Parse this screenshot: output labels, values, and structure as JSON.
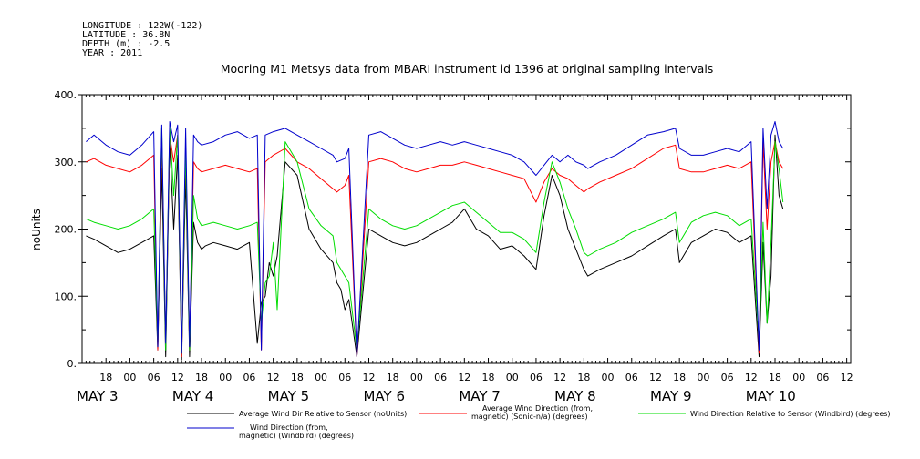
{
  "metadata": {
    "longitude": "LONGITUDE : 122W(-122)",
    "latitude": "LATITUDE : 36.8N",
    "depth": "DEPTH (m) : -2.5",
    "year": "YEAR : 2011"
  },
  "chart_data": {
    "type": "line",
    "title": "Mooring M1 Metsys data from MBARI instrument id 1396 at original sampling intervals",
    "ylabel": "noUnits",
    "xlabel": "",
    "ylim": [
      0,
      400
    ],
    "xlim": [
      12,
      205
    ],
    "x_units": "hours since MAY 3 00:00 (2011)",
    "yticks": [
      0,
      100,
      200,
      300,
      400
    ],
    "ytick_labels": [
      "0.",
      "100.",
      "200.",
      "300.",
      "400."
    ],
    "xticks": [
      {
        "x": 18,
        "label": "18"
      },
      {
        "x": 24,
        "label": "00"
      },
      {
        "x": 30,
        "label": "06"
      },
      {
        "x": 36,
        "label": "12"
      },
      {
        "x": 42,
        "label": "18"
      },
      {
        "x": 48,
        "label": "00"
      },
      {
        "x": 54,
        "label": "06"
      },
      {
        "x": 60,
        "label": "12"
      },
      {
        "x": 66,
        "label": "18"
      },
      {
        "x": 72,
        "label": "00"
      },
      {
        "x": 78,
        "label": "06"
      },
      {
        "x": 84,
        "label": "12"
      },
      {
        "x": 90,
        "label": "18"
      },
      {
        "x": 96,
        "label": "00"
      },
      {
        "x": 102,
        "label": "06"
      },
      {
        "x": 108,
        "label": "12"
      },
      {
        "x": 114,
        "label": "18"
      },
      {
        "x": 120,
        "label": "00"
      },
      {
        "x": 126,
        "label": "06"
      },
      {
        "x": 132,
        "label": "12"
      },
      {
        "x": 138,
        "label": "18"
      },
      {
        "x": 144,
        "label": "00"
      },
      {
        "x": 150,
        "label": "06"
      },
      {
        "x": 156,
        "label": "12"
      },
      {
        "x": 162,
        "label": "18"
      },
      {
        "x": 168,
        "label": "00"
      },
      {
        "x": 174,
        "label": "06"
      },
      {
        "x": 180,
        "label": "12"
      },
      {
        "x": 186,
        "label": "18"
      },
      {
        "x": 192,
        "label": "00"
      },
      {
        "x": 198,
        "label": "06"
      },
      {
        "x": 204,
        "label": "12"
      }
    ],
    "day_labels": [
      {
        "x": 12,
        "label": "MAY  3"
      },
      {
        "x": 36,
        "label": "MAY  4"
      },
      {
        "x": 60,
        "label": "MAY  5"
      },
      {
        "x": 84,
        "label": "MAY  6"
      },
      {
        "x": 108,
        "label": "MAY  7"
      },
      {
        "x": 132,
        "label": "MAY  8"
      },
      {
        "x": 156,
        "label": "MAY  9"
      },
      {
        "x": 180,
        "label": "MAY  10"
      }
    ],
    "series": [
      {
        "name": "Average Wind Dir Relative to Sensor (noUnits)",
        "color": "#000000",
        "x": [
          13,
          15,
          18,
          21,
          24,
          27,
          30,
          31,
          32,
          33,
          34,
          35,
          36,
          37,
          38,
          39,
          40,
          41,
          42,
          43,
          45,
          48,
          51,
          54,
          56,
          57,
          58,
          59,
          60,
          61,
          63,
          66,
          69,
          72,
          75,
          76,
          77,
          78,
          79,
          81,
          84,
          87,
          90,
          93,
          96,
          99,
          102,
          105,
          108,
          111,
          114,
          117,
          120,
          123,
          126,
          128,
          130,
          132,
          134,
          136,
          138,
          139,
          142,
          146,
          150,
          154,
          158,
          161,
          162,
          165,
          168,
          171,
          174,
          177,
          180,
          182,
          183,
          184,
          185,
          186,
          187,
          188
        ],
        "y": [
          190,
          185,
          175,
          165,
          170,
          180,
          190,
          20,
          290,
          10,
          330,
          200,
          310,
          5,
          280,
          10,
          210,
          180,
          170,
          175,
          180,
          175,
          170,
          180,
          30,
          90,
          100,
          150,
          130,
          160,
          300,
          280,
          200,
          170,
          150,
          120,
          110,
          80,
          95,
          10,
          200,
          190,
          180,
          175,
          180,
          190,
          200,
          210,
          230,
          200,
          190,
          170,
          175,
          160,
          140,
          220,
          280,
          250,
          200,
          170,
          140,
          130,
          140,
          150,
          160,
          175,
          190,
          200,
          150,
          180,
          190,
          200,
          195,
          180,
          190,
          10,
          180,
          60,
          130,
          340,
          250,
          230
        ]
      },
      {
        "name": "Average Wind Direction (from, magnetic) (Sonic-n/a) (degrees)",
        "color": "#ff0000",
        "x": [
          13,
          15,
          18,
          21,
          24,
          27,
          30,
          31,
          32,
          33,
          34,
          35,
          36,
          37,
          38,
          39,
          40,
          41,
          42,
          45,
          48,
          51,
          54,
          56,
          57,
          58,
          60,
          63,
          66,
          69,
          72,
          75,
          76,
          78,
          79,
          81,
          84,
          87,
          90,
          93,
          96,
          99,
          102,
          105,
          108,
          111,
          114,
          117,
          120,
          123,
          126,
          128,
          130,
          132,
          134,
          136,
          138,
          139,
          142,
          146,
          150,
          154,
          158,
          161,
          162,
          165,
          168,
          171,
          174,
          177,
          180,
          182,
          183,
          184,
          185,
          186,
          187,
          188
        ],
        "y": [
          300,
          305,
          295,
          290,
          285,
          295,
          310,
          20,
          330,
          30,
          340,
          300,
          340,
          10,
          320,
          20,
          300,
          290,
          285,
          290,
          295,
          290,
          285,
          290,
          20,
          300,
          310,
          320,
          300,
          290,
          275,
          260,
          255,
          265,
          280,
          10,
          300,
          305,
          300,
          290,
          285,
          290,
          295,
          295,
          300,
          295,
          290,
          285,
          280,
          275,
          240,
          270,
          290,
          280,
          275,
          265,
          255,
          260,
          270,
          280,
          290,
          305,
          320,
          325,
          290,
          285,
          285,
          290,
          295,
          290,
          300,
          15,
          330,
          200,
          300,
          330,
          300,
          290
        ]
      },
      {
        "name": "Wind Direction Relative to Sensor (Windbird) (degrees)",
        "color": "#00dd00",
        "x": [
          13,
          15,
          18,
          21,
          24,
          27,
          30,
          31,
          32,
          33,
          34,
          35,
          36,
          37,
          38,
          39,
          40,
          41,
          42,
          45,
          48,
          51,
          54,
          56,
          57,
          58,
          59,
          60,
          61,
          63,
          66,
          69,
          72,
          75,
          76,
          78,
          79,
          81,
          84,
          87,
          90,
          93,
          96,
          99,
          102,
          105,
          108,
          111,
          114,
          117,
          120,
          123,
          126,
          128,
          130,
          132,
          134,
          136,
          138,
          139,
          142,
          146,
          150,
          154,
          158,
          161,
          162,
          165,
          168,
          171,
          174,
          177,
          180,
          182,
          183,
          184,
          185,
          186,
          187,
          188
        ],
        "y": [
          215,
          210,
          205,
          200,
          205,
          215,
          230,
          30,
          350,
          20,
          355,
          250,
          340,
          15,
          320,
          20,
          250,
          215,
          205,
          210,
          205,
          200,
          205,
          210,
          60,
          120,
          130,
          180,
          80,
          330,
          300,
          230,
          205,
          190,
          150,
          130,
          120,
          20,
          230,
          215,
          205,
          200,
          205,
          215,
          225,
          235,
          240,
          225,
          210,
          195,
          195,
          185,
          165,
          240,
          300,
          270,
          230,
          200,
          165,
          160,
          170,
          180,
          195,
          205,
          215,
          225,
          180,
          210,
          220,
          225,
          220,
          205,
          215,
          30,
          210,
          60,
          180,
          330,
          290,
          240
        ]
      },
      {
        "name": "Wind Direction (from, magnetic) (Windbird) (degrees)",
        "color": "#0000cc",
        "x": [
          13,
          15,
          18,
          21,
          24,
          27,
          30,
          31,
          32,
          33,
          34,
          35,
          36,
          37,
          38,
          39,
          40,
          41,
          42,
          45,
          48,
          51,
          54,
          56,
          57,
          58,
          60,
          63,
          66,
          69,
          72,
          75,
          76,
          78,
          79,
          81,
          84,
          87,
          90,
          93,
          96,
          99,
          102,
          105,
          108,
          111,
          114,
          117,
          120,
          123,
          126,
          128,
          130,
          132,
          134,
          136,
          138,
          139,
          142,
          146,
          150,
          154,
          158,
          161,
          162,
          165,
          168,
          171,
          174,
          177,
          180,
          182,
          183,
          184,
          185,
          186,
          187,
          188
        ],
        "y": [
          330,
          340,
          325,
          315,
          310,
          325,
          345,
          25,
          355,
          30,
          360,
          330,
          355,
          15,
          350,
          25,
          340,
          330,
          325,
          330,
          340,
          345,
          335,
          340,
          20,
          340,
          345,
          350,
          340,
          330,
          320,
          310,
          300,
          305,
          320,
          10,
          340,
          345,
          335,
          325,
          320,
          325,
          330,
          325,
          330,
          325,
          320,
          315,
          310,
          300,
          280,
          295,
          310,
          300,
          310,
          300,
          295,
          290,
          300,
          310,
          325,
          340,
          345,
          350,
          320,
          310,
          310,
          315,
          320,
          315,
          330,
          20,
          350,
          230,
          340,
          360,
          330,
          320
        ]
      }
    ],
    "legend_position": "bottom"
  }
}
